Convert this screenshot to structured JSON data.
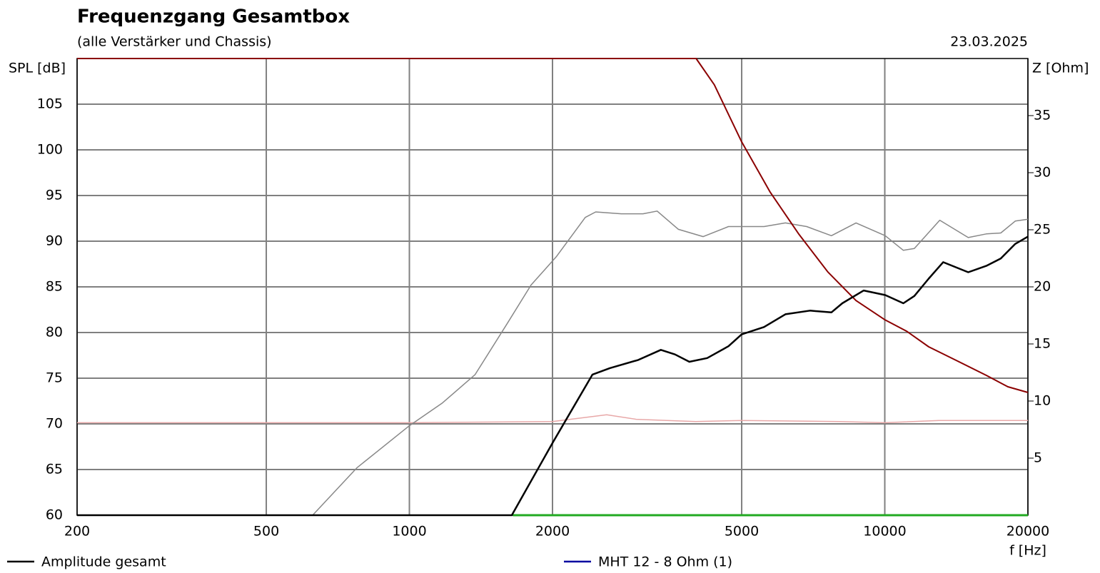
{
  "chart_data": {
    "type": "line",
    "title": "Frequenzgang Gesamtbox",
    "subtitle": "(alle Verstärker und Chassis)",
    "date": "23.03.2025",
    "y_label": "SPL [dB]",
    "y2_label": "Z [Ohm]",
    "x_label": "f [Hz]",
    "log_x": true,
    "grid": true,
    "xlim": [
      200,
      20000
    ],
    "xticks": [
      200,
      500,
      1000,
      2000,
      5000,
      10000,
      20000
    ],
    "ylim": [
      60,
      110
    ],
    "yticks": [
      60,
      65,
      70,
      75,
      80,
      85,
      90,
      95,
      100,
      105
    ],
    "y2lim": [
      0,
      40
    ],
    "y2ticks": [
      5,
      10,
      15,
      20,
      25,
      30,
      35
    ],
    "legend": [
      {
        "name": "Amplitude gesamt",
        "color": "#000000"
      },
      {
        "name": "MHT 12 - 8 Ohm (1)",
        "color": "#0000a0"
      }
    ],
    "series": [
      {
        "color": "#e8a8a8",
        "axis": "y2",
        "width": 1.5,
        "x": [
          200,
          1000,
          2000,
          2600,
          3000,
          4000,
          5000,
          8000,
          10000,
          13000,
          20000
        ],
        "values": [
          8.1,
          8.1,
          8.2,
          8.8,
          8.4,
          8.2,
          8.3,
          8.2,
          8.1,
          8.3,
          8.3
        ]
      },
      {
        "color": "#22aa22",
        "width": 3,
        "x": [
          1650,
          20000
        ],
        "values": [
          60,
          60
        ]
      },
      {
        "color": "#888888",
        "width": 1.5,
        "x": [
          626,
          776,
          1000,
          1174,
          1375,
          1607,
          1803,
          2037,
          2344,
          2465,
          2790,
          3100,
          3320,
          3680,
          4150,
          4690,
          5570,
          6180,
          6850,
          7720,
          8700,
          10020,
          10940,
          11540,
          13050,
          14980,
          16350,
          17540,
          18810,
          20000
        ],
        "values": [
          60,
          65.2,
          69.8,
          72.3,
          75.4,
          81,
          85.2,
          88.3,
          92.6,
          93.2,
          93,
          93,
          93.3,
          91.3,
          90.5,
          91.6,
          91.6,
          92,
          91.6,
          90.6,
          92,
          90.6,
          89,
          89.2,
          92.3,
          90.4,
          90.8,
          90.9,
          92.2,
          92.4
        ]
      },
      {
        "color": "#8b0000",
        "axis": "y2",
        "width": 2,
        "x": [
          200,
          4010,
          4380,
          5000,
          5740,
          6600,
          7590,
          8700,
          10020,
          11130,
          12370,
          14230,
          16350,
          18150,
          20000
        ],
        "values": [
          40,
          40,
          37.7,
          32.7,
          28.3,
          24.6,
          21.3,
          18.8,
          17.1,
          16.1,
          14.75,
          13.5,
          12.25,
          11.25,
          10.75
        ]
      },
      {
        "color": "#000000",
        "width": 2.5,
        "x": [
          200,
          1642,
          2005,
          2427,
          2640,
          3030,
          3380,
          3620,
          3880,
          4230,
          4690,
          5000,
          5570,
          6180,
          6960,
          7720,
          8140,
          9030,
          10020,
          10940,
          11540,
          12370,
          13270,
          14980,
          16350,
          17540,
          18810,
          20000
        ],
        "values": [
          60,
          60,
          68,
          75.4,
          76.1,
          77,
          78.1,
          77.6,
          76.8,
          77.2,
          78.5,
          79.8,
          80.6,
          82,
          82.4,
          82.2,
          83.2,
          84.6,
          84.1,
          83.2,
          84,
          85.9,
          87.7,
          86.6,
          87.3,
          88.1,
          89.7,
          90.5
        ]
      }
    ]
  }
}
